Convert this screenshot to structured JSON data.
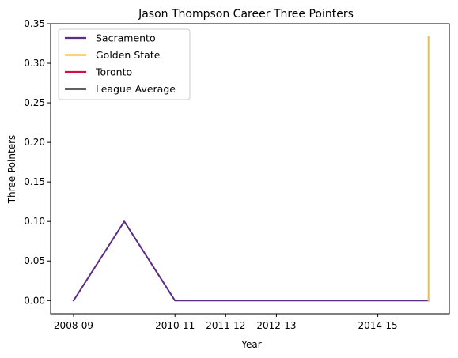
{
  "chart_data": {
    "type": "line",
    "title": "Jason Thompson  Career Three Pointers",
    "xlabel": "Year",
    "ylabel": "Three Pointers",
    "x_ticks": [
      "2008-09",
      "2010-11",
      "2011-12",
      "2012-13",
      "2014-15"
    ],
    "ylim": [
      -0.0167,
      0.35
    ],
    "y_ticks": [
      "0.00",
      "0.05",
      "0.10",
      "0.15",
      "0.20",
      "0.25",
      "0.30",
      "0.35"
    ],
    "legend_position": "upper-left",
    "series": [
      {
        "name": "Sacramento",
        "color": "#5b2c83",
        "points": [
          {
            "x": "2008-09",
            "y": 0.0
          },
          {
            "x": "2009-10",
            "y": 0.1
          },
          {
            "x": "2010-11",
            "y": 0.0
          },
          {
            "x": "2011-12",
            "y": 0.0
          },
          {
            "x": "2012-13",
            "y": 0.0
          },
          {
            "x": "2013-14",
            "y": 0.0
          },
          {
            "x": "2014-15",
            "y": 0.0
          },
          {
            "x": "2015-16",
            "y": 0.0
          }
        ]
      },
      {
        "name": "Golden State",
        "color": "#fdb927",
        "points": [
          {
            "x": "2015-16",
            "y": 0.0
          },
          {
            "x": "2015-16",
            "y": 0.333
          }
        ]
      },
      {
        "name": "Toronto",
        "color": "#ce1141",
        "points": []
      },
      {
        "name": "League Average",
        "color": "#000000",
        "points": []
      }
    ]
  }
}
